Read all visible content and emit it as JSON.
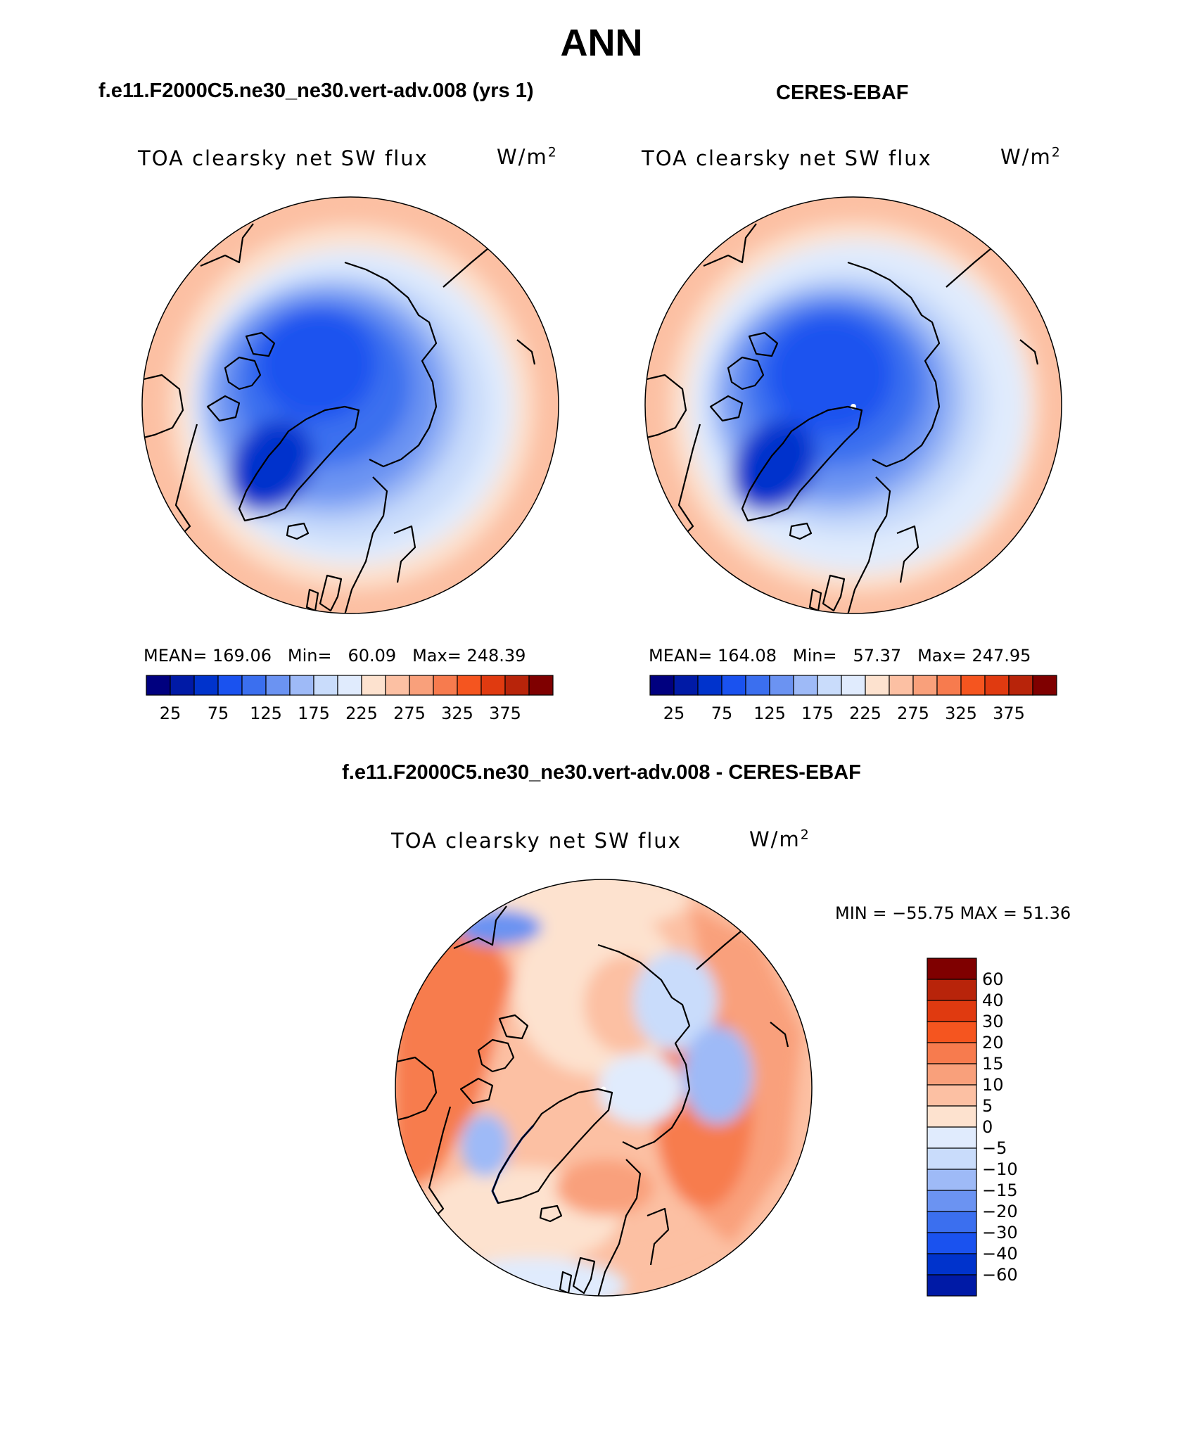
{
  "title": "ANN",
  "panels": [
    {
      "id": "model",
      "title": "f.e11.F2000C5.ne30_ne30.vert-adv.008 (yrs 1)",
      "variable": "TOA clearsky net SW flux",
      "units_base": "W/m",
      "units_exp": "2",
      "stats": {
        "mean_label": "MEAN=",
        "mean": "169.06",
        "min_label": "Min=",
        "min": "60.09",
        "max_label": "Max=",
        "max": "248.39"
      }
    },
    {
      "id": "obs",
      "title": "CERES-EBAF",
      "variable": "TOA clearsky net SW flux",
      "units_base": "W/m",
      "units_exp": "2",
      "stats": {
        "mean_label": "MEAN=",
        "mean": "164.08",
        "min_label": "Min=",
        "min": "57.37",
        "max_label": "Max=",
        "max": "247.95"
      }
    }
  ],
  "diff_panel": {
    "title": "f.e11.F2000C5.ne30_ne30.vert-adv.008 - CERES-EBAF",
    "variable": "TOA clearsky net SW flux",
    "units_base": "W/m",
    "units_exp": "2",
    "minmax": "MIN = −55.75 MAX =   51.36"
  },
  "colorbar_main": {
    "colors": [
      "#00007f",
      "#001aa6",
      "#0033cc",
      "#1a52ef",
      "#3b6fef",
      "#6b93f2",
      "#9ebaf7",
      "#c9dcfb",
      "#e0ebfd",
      "#fde2cf",
      "#fcc0a3",
      "#f9a07b",
      "#f77b4e",
      "#f5551f",
      "#e03a10",
      "#b8240a",
      "#7f0000"
    ],
    "tick_labels": [
      "25",
      "75",
      "125",
      "175",
      "225",
      "275",
      "325",
      "375"
    ]
  },
  "colorbar_diff": {
    "colors": [
      "#7f0000",
      "#b8240a",
      "#e03a10",
      "#f5551f",
      "#f77b4e",
      "#f9a07b",
      "#fcc0a3",
      "#fde2cf",
      "#e0ebfd",
      "#c9dcfb",
      "#9ebaf7",
      "#6b93f2",
      "#3b6fef",
      "#1a52ef",
      "#0033cc",
      "#001aa6"
    ],
    "tick_labels": [
      "60",
      "40",
      "30",
      "20",
      "15",
      "10",
      "5",
      "0",
      "−5",
      "−10",
      "−15",
      "−20",
      "−30",
      "−40",
      "−60"
    ]
  }
}
